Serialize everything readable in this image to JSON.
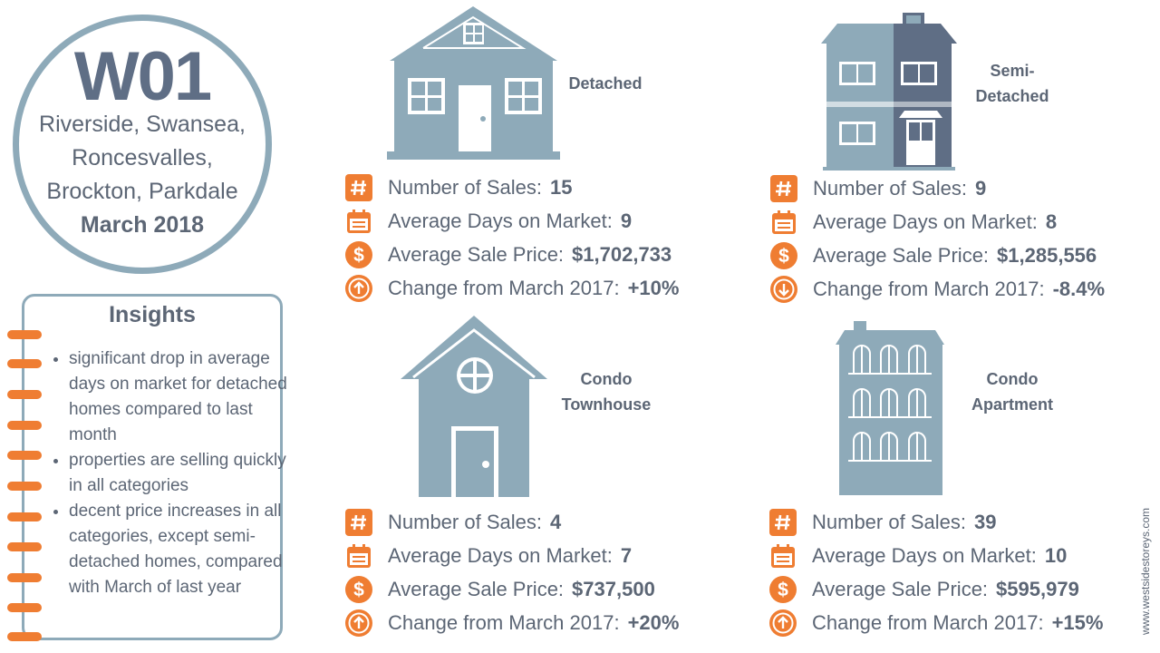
{
  "header": {
    "code": "W01",
    "area_lines": [
      "Riverside, Swansea,",
      "Roncesvalles,",
      "Brockton, Parkdale"
    ],
    "period": "March 2018"
  },
  "insights": {
    "title": "Insights",
    "items": [
      "significant drop in average days on market for detached homes compared to last month",
      "properties are selling quickly in all categories",
      "decent price increases in all categories, except semi-detached homes, compared with March of last year"
    ]
  },
  "stat_labels": {
    "sales": "Number of Sales:",
    "days": "Average Days on Market:",
    "price": "Average Sale Price:",
    "change": "Change from March 2017:"
  },
  "properties": [
    {
      "name_lines": [
        "Detached"
      ],
      "sales": "15",
      "days": "9",
      "price": "$1,702,733",
      "change": "+10%",
      "change_direction": "up"
    },
    {
      "name_lines": [
        "Semi-",
        "Detached"
      ],
      "sales": "9",
      "days": "8",
      "price": "$1,285,556",
      "change": "-8.4%",
      "change_direction": "down"
    },
    {
      "name_lines": [
        "Condo",
        "Townhouse"
      ],
      "sales": "4",
      "days": "7",
      "price": "$737,500",
      "change": "+20%",
      "change_direction": "up"
    },
    {
      "name_lines": [
        "Condo",
        "Apartment"
      ],
      "sales": "39",
      "days": "10",
      "price": "$595,979",
      "change": "+15%",
      "change_direction": "up"
    }
  ],
  "credit": "www.westsidestoreys.com",
  "colors": {
    "accent": "#ef7d32",
    "building": "#8eaab9",
    "building_dark": "#5f6e85",
    "text": "#5c6675"
  }
}
